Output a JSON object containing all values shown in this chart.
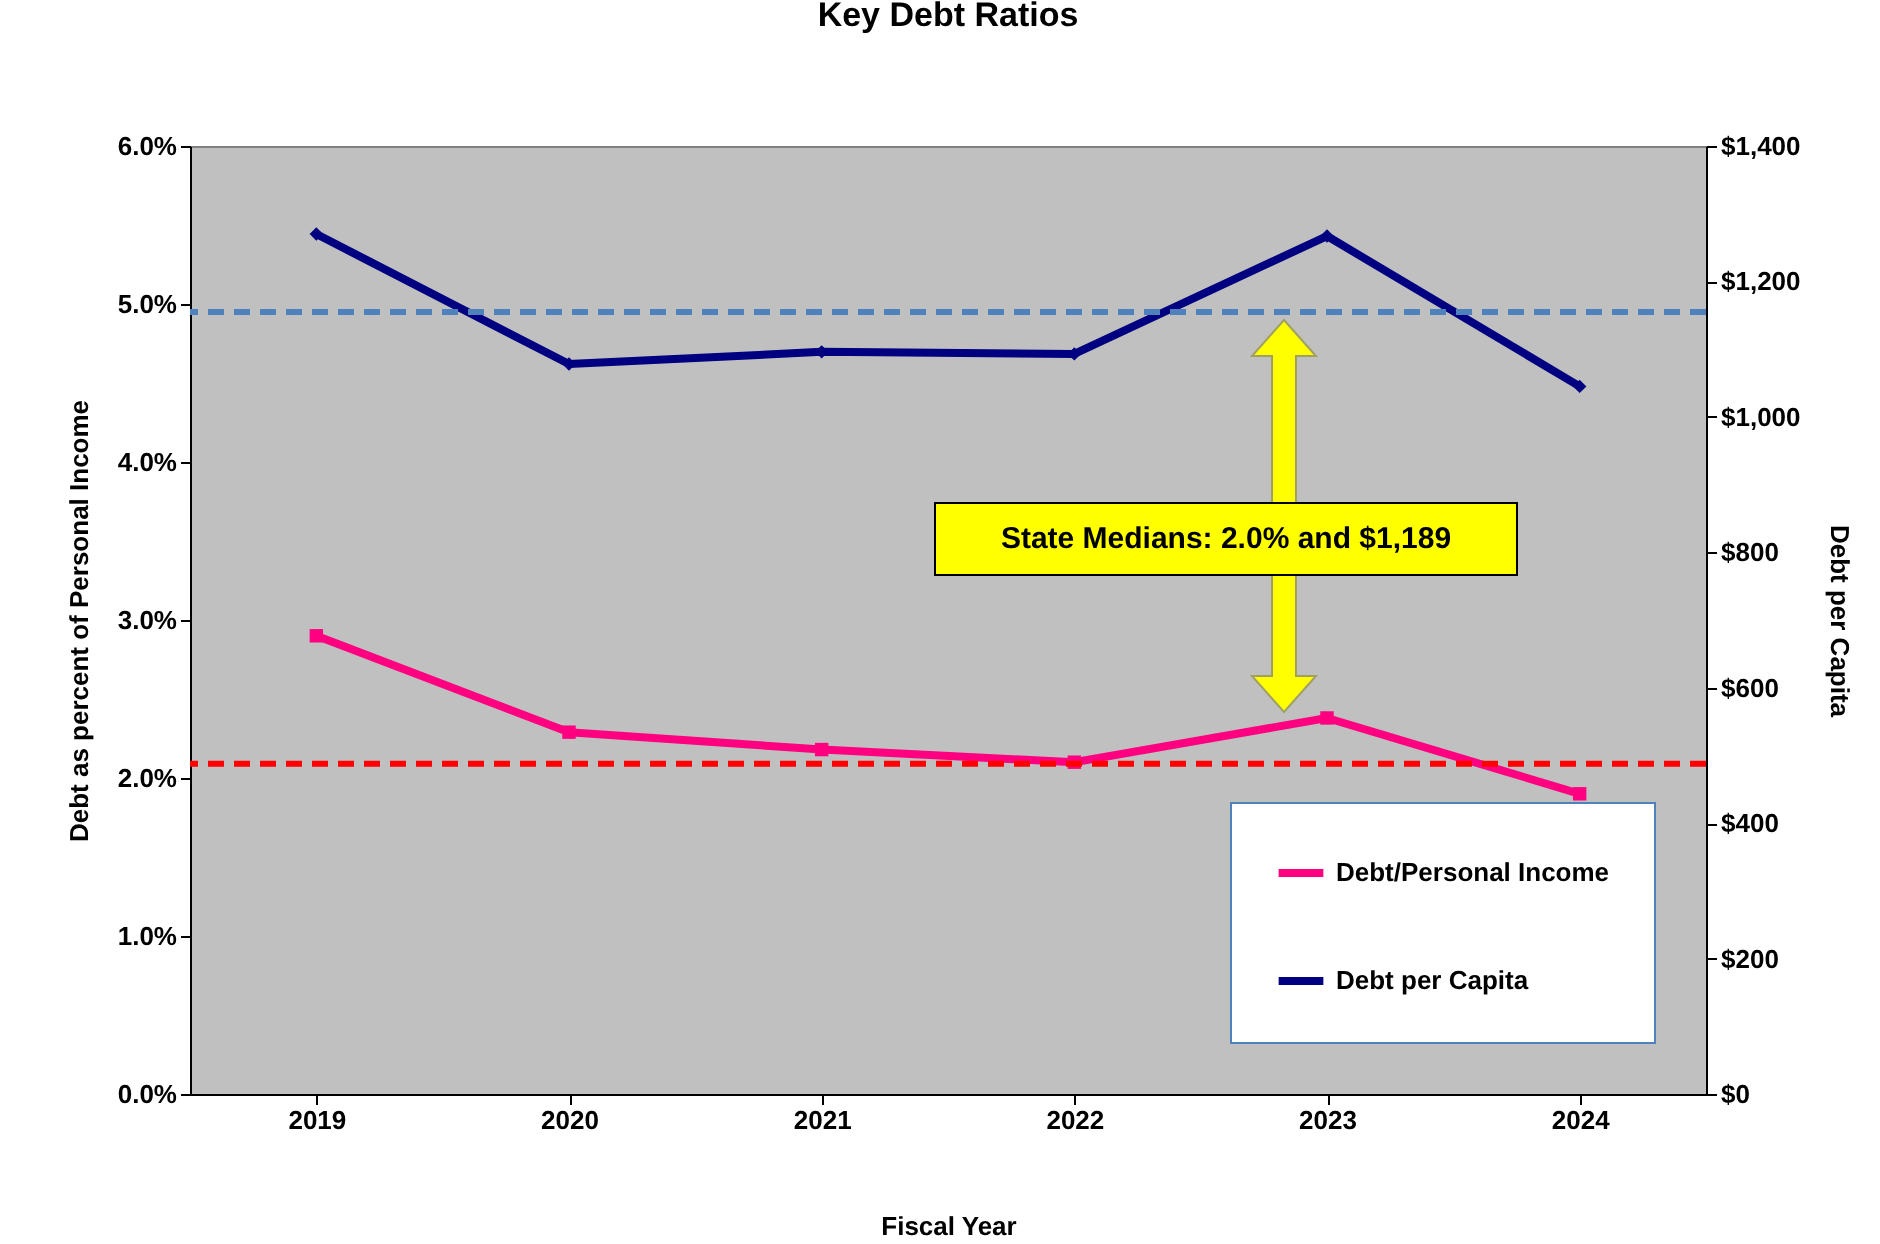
{
  "chart_data": {
    "type": "line",
    "title": "Key Debt Ratios",
    "xlabel": "Fiscal Year",
    "ylabel": "Debt as percent of Personal Income",
    "y2label": "Debt per Capita",
    "categories": [
      "2019",
      "2020",
      "2021",
      "2022",
      "2023",
      "2024"
    ],
    "series": [
      {
        "name": "Debt/Personal Income",
        "color": "#ff0080",
        "marker": "square",
        "values": [
          2.9,
          2.29,
          2.18,
          2.1,
          2.38,
          1.9
        ]
      },
      {
        "name": "Debt per Capita",
        "color": "#000080",
        "marker": "diamond",
        "axis": "y2",
        "values": [
          1270,
          1078,
          1096,
          1093,
          1267,
          1045
        ]
      }
    ],
    "ylim": [
      0,
      6
    ],
    "yticks": [
      {
        "value": 0,
        "label": "0.0%"
      },
      {
        "value": 1,
        "label": "1.0%"
      },
      {
        "value": 2,
        "label": "2.0%"
      },
      {
        "value": 3,
        "label": "3.0%"
      },
      {
        "value": 4,
        "label": "4.0%"
      },
      {
        "value": 5,
        "label": "5.0%"
      },
      {
        "value": 6,
        "label": "6.0%"
      }
    ],
    "y2lim": [
      0,
      1400
    ],
    "y2ticks": [
      {
        "value": 0,
        "label": "$0"
      },
      {
        "value": 200,
        "label": "$200"
      },
      {
        "value": 400,
        "label": "$400"
      },
      {
        "value": 600,
        "label": "$600"
      },
      {
        "value": 800,
        "label": "$800"
      },
      {
        "value": 1000,
        "label": "$1,000"
      },
      {
        "value": 1200,
        "label": "$1,200"
      },
      {
        "value": 1400,
        "label": "$1,400"
      }
    ],
    "ref_lines": [
      {
        "axis": "y",
        "value": 2.09,
        "color": "#ff0000",
        "line_style": "dashed"
      },
      {
        "axis": "y2",
        "value": 1155,
        "color": "#4f81bd",
        "line_style": "dashed"
      }
    ],
    "annotations": [
      "State Medians: 2.0% and $1,189"
    ],
    "legend": "bottom right",
    "grid": false
  }
}
